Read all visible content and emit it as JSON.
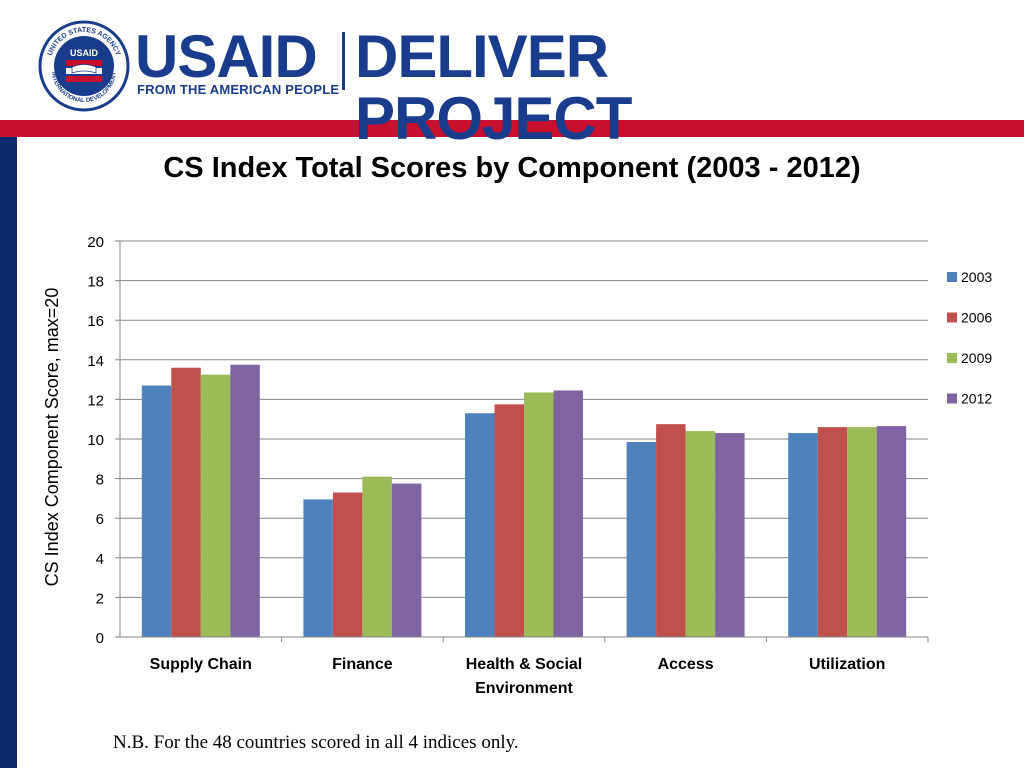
{
  "header": {
    "brand_usaid": "USAID",
    "brand_project": "DELIVER PROJECT",
    "brand_tagline": "FROM THE AMERICAN PEOPLE",
    "seal_text_top": "UNITED STATES AGENCY",
    "seal_text_bottom": "INTERNATIONAL DEVELOPMENT",
    "seal_label": "USAID"
  },
  "colors": {
    "navy": "#1a3c8c",
    "red": "#c8102e",
    "sidebar": "#0a2a6b"
  },
  "footnote": "N.B. For the 48 countries scored in all 4 indices only.",
  "chart_data": {
    "type": "bar",
    "title": "CS Index Total Scores by Component (2003 - 2012)",
    "ylabel": "CS Index Component Score, max=20",
    "xlabel": "",
    "ylim": [
      0,
      20
    ],
    "yticks": [
      "0",
      "2",
      "4",
      "6",
      "8",
      "10",
      "12",
      "14",
      "16",
      "18",
      "20"
    ],
    "grid": true,
    "legend_position": "right",
    "categories": [
      [
        "Supply Chain"
      ],
      [
        "Finance"
      ],
      [
        "Health & Social",
        "Environment"
      ],
      [
        "Access"
      ],
      [
        "Utilization"
      ]
    ],
    "series": [
      {
        "name": "2003",
        "color": "#4f81bd",
        "values": [
          12.7,
          6.95,
          11.3,
          9.85,
          10.3
        ]
      },
      {
        "name": "2006",
        "color": "#c0504d",
        "values": [
          13.6,
          7.3,
          11.75,
          10.75,
          10.6
        ]
      },
      {
        "name": "2009",
        "color": "#9bbb59",
        "values": [
          13.25,
          8.1,
          12.35,
          10.4,
          10.6
        ]
      },
      {
        "name": "2012",
        "color": "#8064a2",
        "values": [
          13.75,
          7.75,
          12.45,
          10.3,
          10.65
        ]
      }
    ]
  }
}
